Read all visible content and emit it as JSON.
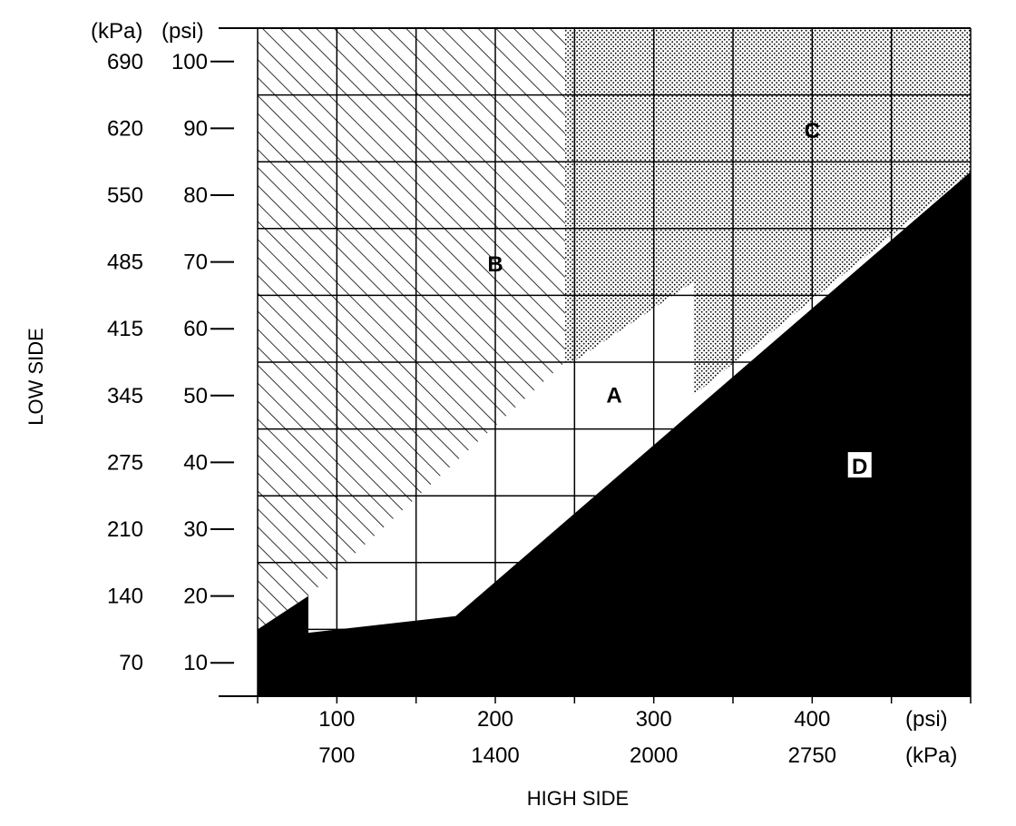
{
  "chart_data": {
    "type": "area",
    "title": "",
    "xlabel": "HIGH SIDE",
    "ylabel": "LOW SIDE",
    "x_axis": {
      "unit_primary": "(psi)",
      "unit_secondary": "(kPa)",
      "range_psi": [
        50,
        500
      ],
      "ticks_psi": [
        50,
        100,
        150,
        200,
        250,
        300,
        350,
        400,
        450,
        500
      ],
      "labels_psi": [
        "100",
        "200",
        "300",
        "400"
      ],
      "labeled_ticks_psi": [
        100,
        200,
        300,
        400
      ],
      "labels_kpa": [
        "700",
        "1400",
        "2000",
        "2750"
      ]
    },
    "y_axis": {
      "unit_primary": "(psi)",
      "unit_secondary": "(kPa)",
      "range_psi": [
        5,
        105
      ],
      "ticks_psi": [
        10,
        20,
        30,
        40,
        50,
        60,
        70,
        80,
        90,
        100
      ],
      "labels_psi": [
        "10",
        "20",
        "30",
        "40",
        "50",
        "60",
        "70",
        "80",
        "90",
        "100"
      ],
      "labels_kpa": [
        "70",
        "140",
        "210",
        "275",
        "345",
        "415",
        "485",
        "550",
        "620",
        "690"
      ]
    },
    "grid": true,
    "regions": [
      {
        "name": "A",
        "fill": "white",
        "points_psi": [
          [
            82,
            20
          ],
          [
            82,
            14.5
          ],
          [
            175,
            17
          ],
          [
            325,
            50
          ],
          [
            325,
            67
          ],
          [
            249,
            55
          ]
        ]
      },
      {
        "name": "B",
        "fill": "diagonal-hatch",
        "points_psi": [
          [
            50,
            105
          ],
          [
            244,
            105
          ],
          [
            244,
            55
          ],
          [
            82,
            20
          ],
          [
            50,
            15
          ]
        ]
      },
      {
        "name": "C",
        "fill": "dotted",
        "points_psi": [
          [
            244,
            105
          ],
          [
            500,
            105
          ],
          [
            500,
            83.5
          ],
          [
            325,
            50
          ],
          [
            325,
            67
          ],
          [
            249,
            55
          ],
          [
            244,
            55
          ]
        ]
      },
      {
        "name": "D",
        "fill": "black",
        "points_psi": [
          [
            50,
            5
          ],
          [
            500,
            5
          ],
          [
            500,
            83.5
          ],
          [
            175,
            17
          ],
          [
            82,
            14.5
          ],
          [
            82,
            20
          ],
          [
            50,
            15
          ]
        ]
      }
    ]
  }
}
